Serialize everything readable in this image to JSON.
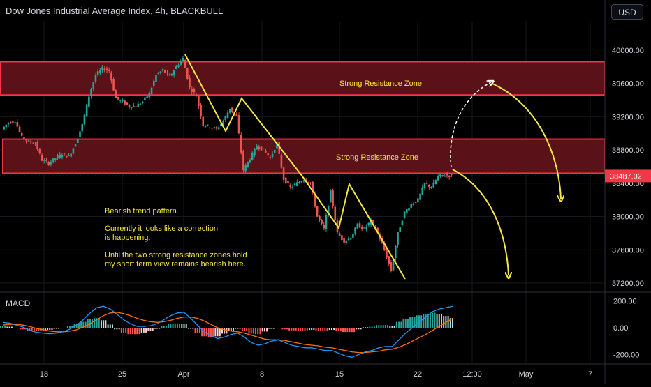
{
  "header": {
    "title": "Dow Jones Industrial Average Index, 4h, BLACKBULL",
    "currency": "USD"
  },
  "annotations": {
    "zone_upper": "Strong Resistance Zone",
    "zone_lower": "Strong Resistance Zone",
    "note_lines": [
      "Bearish trend pattern.",
      "Currently it looks like a correction",
      "is happening.",
      "Until the two strong resistance zones hold",
      "my short term view remains bearish here."
    ]
  },
  "colors": {
    "background": "#000000",
    "zone_fill": "#5a1218",
    "zone_border": "#f23645",
    "candle_up": "#26a69a",
    "candle_down": "#ef5350",
    "arrow": "#f5e642",
    "macd_line": "#2196f3",
    "signal_line": "#ff6d00",
    "price_label_bg": "#f23645"
  },
  "chart_data": [
    {
      "type": "candlestick",
      "title": "Dow Jones Industrial Average Index, 4h, BLACKBULL",
      "y_ticks": [
        "40000.00",
        "39600.00",
        "39200.00",
        "38800.00",
        "38400.00",
        "38000.00",
        "37600.00",
        "37200.00"
      ],
      "ylim": [
        37100,
        40350
      ],
      "x_ticks": [
        "18",
        "25",
        "Apr",
        "8",
        "15",
        "22",
        "12:00",
        "May",
        "7"
      ],
      "last_price": 38487.02,
      "last_price_label": "38487.02",
      "zones": [
        {
          "label": "Strong Resistance Zone",
          "from": 39460,
          "to": 39860
        },
        {
          "label": "Strong Resistance Zone",
          "from": 38520,
          "to": 38930
        }
      ],
      "close_path": [
        [
          0,
          39050
        ],
        [
          1,
          39130
        ],
        [
          2,
          39150
        ],
        [
          3,
          38950
        ],
        [
          4,
          38900
        ],
        [
          5,
          38880
        ],
        [
          6,
          38680
        ],
        [
          7,
          38640
        ],
        [
          8,
          38700
        ],
        [
          9,
          38750
        ],
        [
          10,
          38720
        ],
        [
          11,
          38880
        ],
        [
          12,
          39100
        ],
        [
          13,
          39450
        ],
        [
          14,
          39700
        ],
        [
          15,
          39780
        ],
        [
          16,
          39750
        ],
        [
          17,
          39420
        ],
        [
          18,
          39380
        ],
        [
          19,
          39320
        ],
        [
          20,
          39330
        ],
        [
          21,
          39380
        ],
        [
          22,
          39480
        ],
        [
          23,
          39700
        ],
        [
          24,
          39760
        ],
        [
          25,
          39680
        ],
        [
          26,
          39800
        ],
        [
          27,
          39900
        ],
        [
          28,
          39550
        ],
        [
          29,
          39450
        ],
        [
          30,
          39100
        ],
        [
          31,
          39080
        ],
        [
          32,
          39050
        ],
        [
          33,
          39150
        ],
        [
          34,
          39300
        ],
        [
          35,
          39200
        ],
        [
          36,
          38560
        ],
        [
          37,
          38700
        ],
        [
          38,
          38850
        ],
        [
          39,
          38800
        ],
        [
          40,
          38700
        ],
        [
          41,
          38880
        ],
        [
          42,
          38450
        ],
        [
          43,
          38350
        ],
        [
          44,
          38400
        ],
        [
          45,
          38450
        ],
        [
          46,
          38400
        ],
        [
          47,
          38000
        ],
        [
          48,
          37850
        ],
        [
          49,
          38300
        ],
        [
          50,
          37800
        ],
        [
          51,
          37700
        ],
        [
          52,
          37750
        ],
        [
          53,
          37900
        ],
        [
          54,
          37850
        ],
        [
          55,
          37950
        ],
        [
          56,
          37800
        ],
        [
          57,
          37600
        ],
        [
          58,
          37350
        ],
        [
          59,
          37800
        ],
        [
          60,
          38050
        ],
        [
          61,
          38150
        ],
        [
          62,
          38200
        ],
        [
          63,
          38400
        ],
        [
          64,
          38350
        ],
        [
          65,
          38480
        ],
        [
          66,
          38500
        ],
        [
          67,
          38487
        ]
      ]
    },
    {
      "type": "line",
      "title": "MACD",
      "y_ticks": [
        "200.00",
        "0.00",
        "-200.00"
      ],
      "ylim": [
        -260,
        260
      ],
      "series": [
        {
          "values": [
            40,
            35,
            20,
            5,
            -20,
            -35,
            -40,
            -45,
            -40,
            -30,
            -10,
            20,
            60,
            110,
            150,
            160,
            140,
            100,
            60,
            30,
            10,
            10,
            15,
            30,
            60,
            90,
            110,
            115,
            70,
            20,
            -30,
            -60,
            -80,
            -70,
            -50,
            -40,
            -70,
            -110,
            -130,
            -120,
            -100,
            -90,
            -110,
            -130,
            -140,
            -150,
            -150,
            -160,
            -170,
            -170,
            -190,
            -210,
            -220,
            -200,
            -180,
            -170,
            -150,
            -140,
            -140,
            -90,
            -40,
            0,
            40,
            80,
            120,
            140,
            150,
            160
          ]
        },
        {
          "values": [
            20,
            25,
            25,
            20,
            10,
            -5,
            -15,
            -25,
            -30,
            -30,
            -25,
            -15,
            5,
            30,
            60,
            90,
            110,
            115,
            105,
            90,
            70,
            55,
            45,
            40,
            45,
            55,
            70,
            80,
            80,
            70,
            50,
            25,
            0,
            -15,
            -25,
            -30,
            -40,
            -55,
            -70,
            -85,
            -90,
            -90,
            -95,
            -105,
            -115,
            -125,
            -130,
            -135,
            -145,
            -150,
            -160,
            -170,
            -180,
            -185,
            -185,
            -180,
            -175,
            -165,
            -160,
            -145,
            -125,
            -100,
            -75,
            -50,
            -20,
            10,
            40,
            70
          ]
        }
      ]
    }
  ]
}
